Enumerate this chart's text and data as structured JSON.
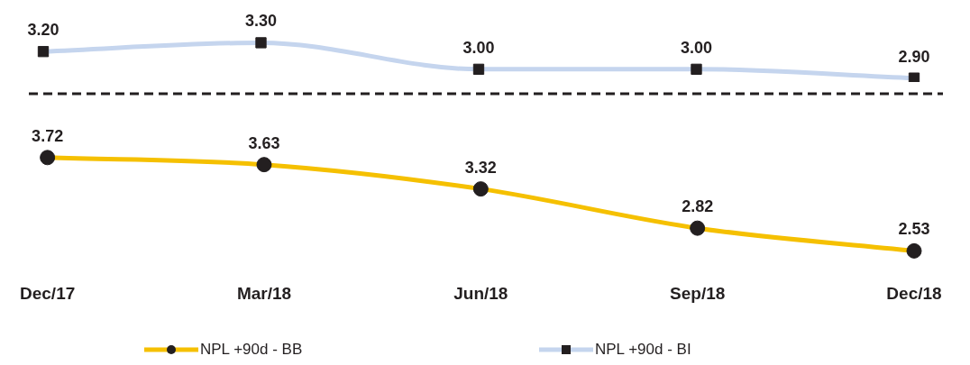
{
  "chart_data": [
    {
      "type": "line",
      "categories": [
        null,
        null,
        null,
        null,
        null
      ],
      "tick_labels": false,
      "legend": "bottom",
      "series": [
        {
          "name": "NPL +90d - BI",
          "color": "#c5d5ee",
          "marker": "square",
          "values": [
            3.2,
            3.3,
            3.0,
            3.0,
            2.9
          ],
          "value_labels": [
            "3.20",
            "3.30",
            "3.00",
            "3.00",
            "2.90"
          ]
        }
      ]
    },
    {
      "type": "line",
      "categories": [
        "Dec/17",
        "Mar/18",
        "Jun/18",
        "Sep/18",
        "Dec/18"
      ],
      "tick_labels": "x",
      "legend": "bottom",
      "series": [
        {
          "name": "NPL +90d - BB",
          "color": "#f5c000",
          "marker": "circle",
          "values": [
            3.72,
            3.63,
            3.32,
            2.82,
            2.53
          ],
          "value_labels": [
            "3.72",
            "3.63",
            "3.32",
            "2.82",
            "2.53"
          ]
        }
      ]
    }
  ]
}
